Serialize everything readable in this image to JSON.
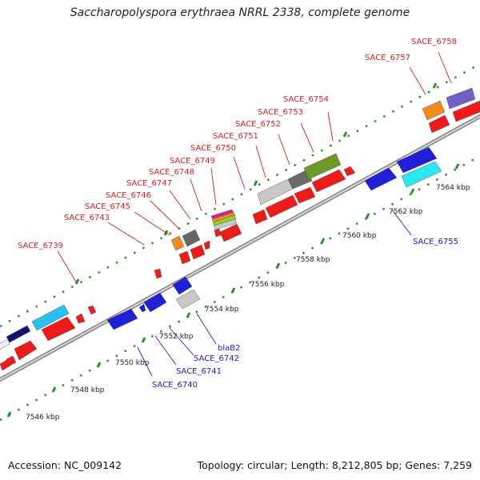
{
  "title": "Saccharopolyspora erythraea NRRL 2338, complete genome",
  "footer": {
    "accession": "Accession: NC_009142",
    "summary": "Topology: circular; Length: 8,212,805 bp; Genes: 7,259"
  },
  "colors": {
    "backbone": "#7a7a7a",
    "tick": "#2f8f2f",
    "forward_label": "#d42020",
    "reverse_label": "#1a1ad0",
    "label_line": "#c82020",
    "reverse_line": "#2020c8"
  },
  "scale_labels": [
    "7546 kbp",
    "7548 kbp",
    "7550 kbp",
    "7552 kbp",
    "7554 kbp",
    "7556 kbp",
    "7558 kbp",
    "7560 kbp",
    "7562 kbp",
    "7564 kbp"
  ],
  "forward_labels": [
    "SACE_6739",
    "SACE_6743",
    "SACE_6745",
    "SACE_6746",
    "SACE_6747",
    "SACE_6748",
    "SACE_6749",
    "SACE_6750",
    "SACE_6751",
    "SACE_6752",
    "SACE_6753",
    "SACE_6754",
    "SACE_6757",
    "SACE_6758"
  ],
  "reverse_labels": [
    "SACE_6740",
    "SACE_6741",
    "SACE_6742",
    "blaB2",
    "SACE_6755"
  ]
}
